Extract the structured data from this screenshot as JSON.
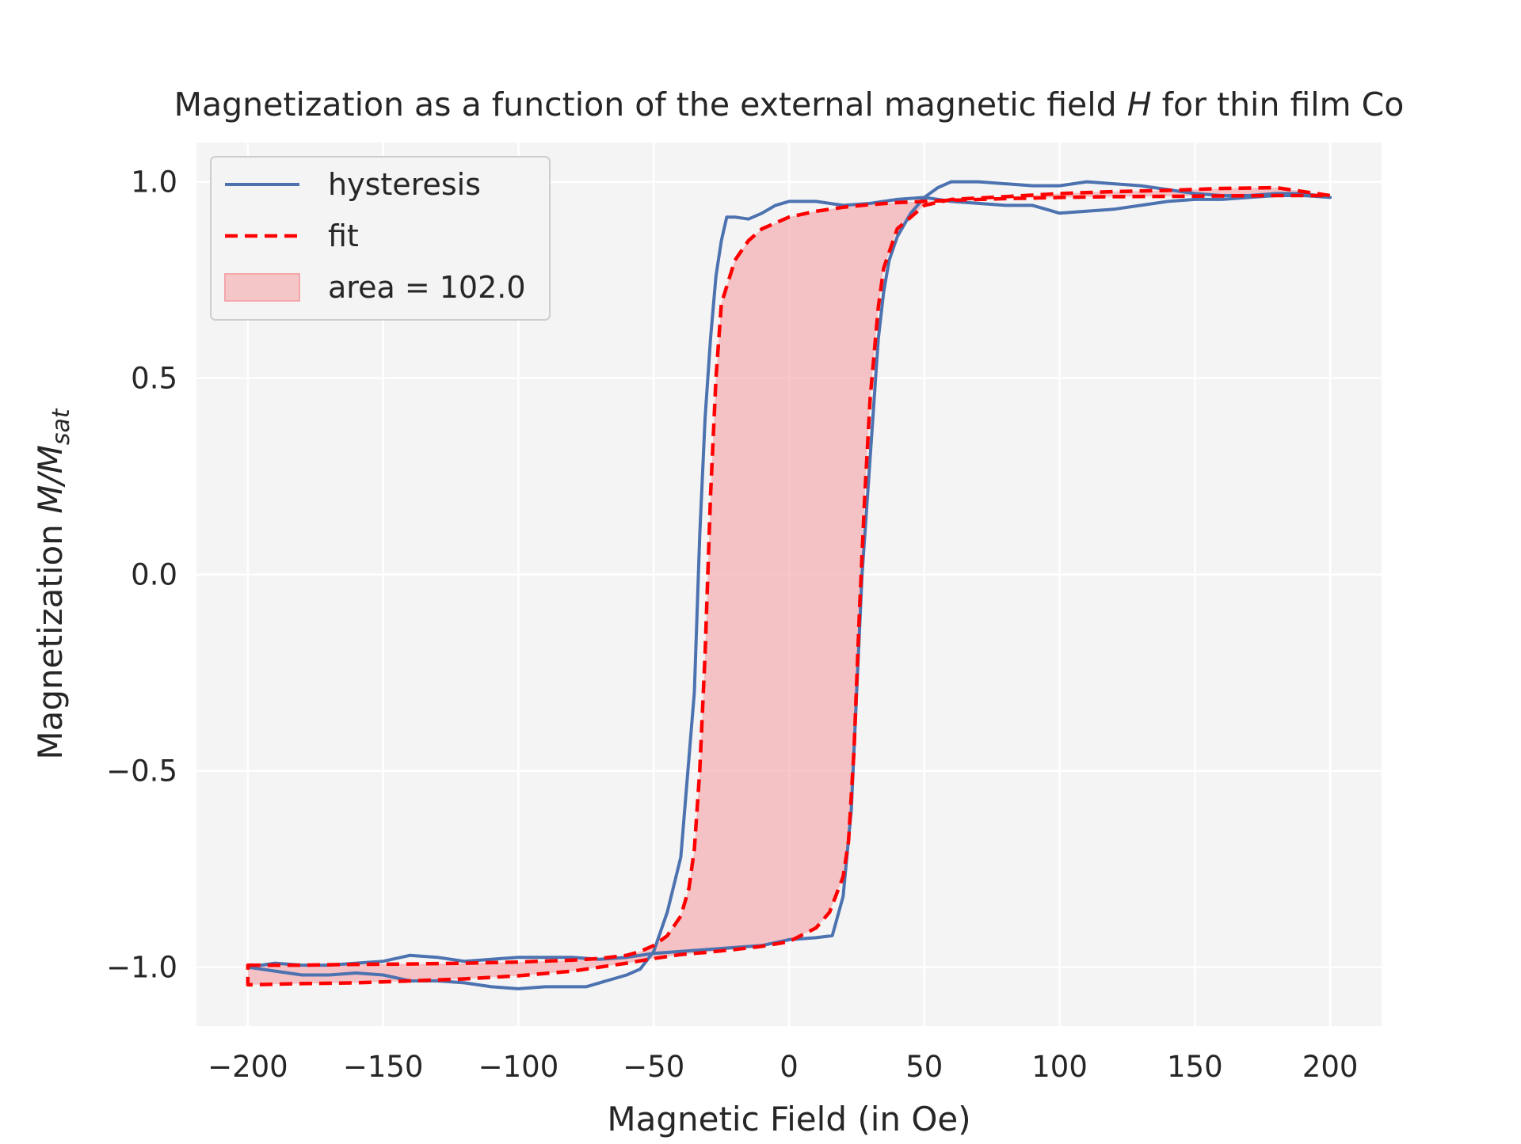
{
  "chart_data": {
    "type": "line",
    "title": {
      "prefix": "Magnetization as a function of the external magnetic field ",
      "symbol": "H",
      "suffix": " for thin film Co"
    },
    "xlabel": "Magnetic Field (in Oe)",
    "ylabel": {
      "prefix": "Magnetization ",
      "math_main": "M/M",
      "math_sub": "sat"
    },
    "xlim": [
      -219,
      219
    ],
    "ylim": [
      -1.15,
      1.1
    ],
    "x_ticks": [
      -200,
      -150,
      -100,
      -50,
      0,
      50,
      100,
      150,
      200
    ],
    "x_tick_labels": [
      "−200",
      "−150",
      "−100",
      "−50",
      "0",
      "50",
      "100",
      "150",
      "200"
    ],
    "y_ticks": [
      -1.0,
      -0.5,
      0.0,
      0.5,
      1.0
    ],
    "y_tick_labels": [
      "−1.0",
      "−0.5",
      "0.0",
      "0.5",
      "1.0"
    ],
    "grid": true,
    "legend_placement": "upper-left",
    "legend": [
      {
        "label": "hysteresis",
        "kind": "line",
        "color": "#4c72b0"
      },
      {
        "label": "fit",
        "kind": "dashed",
        "color": "#ff0000"
      },
      {
        "label": "area = 102.0",
        "kind": "patch",
        "color": "#f4a6aa"
      }
    ],
    "series": [
      {
        "name": "hysteresis",
        "color": "#4c72b0",
        "x": [
          -200,
          -190,
          -180,
          -170,
          -160,
          -150,
          -140,
          -130,
          -120,
          -110,
          -100,
          -90,
          -80,
          -75,
          -70,
          -60,
          -55,
          -50,
          -45,
          -40,
          -35,
          -33,
          -31,
          -29,
          -27,
          -25,
          -23,
          -20,
          -15,
          -10,
          -5,
          0,
          10,
          20,
          30,
          40,
          50,
          55,
          60,
          65,
          70,
          80,
          90,
          100,
          110,
          120,
          130,
          140,
          150,
          160,
          170,
          180,
          190,
          200,
          190,
          180,
          170,
          160,
          150,
          140,
          130,
          120,
          110,
          100,
          95,
          90,
          80,
          70,
          60,
          50,
          45,
          40,
          37,
          35,
          33,
          31,
          29,
          27,
          25,
          23,
          20,
          16,
          10,
          0,
          -10,
          -20,
          -30,
          -40,
          -50,
          -60,
          -70,
          -80,
          -90,
          -100,
          -110,
          -120,
          -130,
          -140,
          -150,
          -160,
          -170,
          -180,
          -190,
          -200
        ],
        "y": [
          -1.0,
          -1.01,
          -1.02,
          -1.02,
          -1.015,
          -1.02,
          -1.035,
          -1.035,
          -1.04,
          -1.05,
          -1.055,
          -1.05,
          -1.05,
          -1.05,
          -1.04,
          -1.02,
          -1.005,
          -0.96,
          -0.86,
          -0.72,
          -0.3,
          0.1,
          0.4,
          0.6,
          0.76,
          0.85,
          0.91,
          0.91,
          0.905,
          0.92,
          0.94,
          0.95,
          0.95,
          0.94,
          0.945,
          0.955,
          0.96,
          0.985,
          1.0,
          1.0,
          1.0,
          0.995,
          0.99,
          0.99,
          1.0,
          0.995,
          0.99,
          0.98,
          0.97,
          0.965,
          0.965,
          0.97,
          0.97,
          0.96,
          0.965,
          0.965,
          0.96,
          0.955,
          0.955,
          0.95,
          0.94,
          0.93,
          0.925,
          0.92,
          0.93,
          0.94,
          0.94,
          0.945,
          0.95,
          0.96,
          0.92,
          0.86,
          0.8,
          0.72,
          0.6,
          0.4,
          0.2,
          0.0,
          -0.3,
          -0.6,
          -0.82,
          -0.92,
          -0.925,
          -0.93,
          -0.945,
          -0.95,
          -0.955,
          -0.96,
          -0.965,
          -0.975,
          -0.98,
          -0.975,
          -0.975,
          -0.975,
          -0.98,
          -0.985,
          -0.975,
          -0.97,
          -0.985,
          -0.99,
          -0.995,
          -0.995,
          -0.99,
          -1.0
        ]
      },
      {
        "name": "fit",
        "color": "#ff0000",
        "x": [
          -200,
          -180,
          -160,
          -140,
          -120,
          -100,
          -80,
          -70,
          -60,
          -55,
          -50,
          -45,
          -40,
          -37,
          -35,
          -33,
          -31,
          -29,
          -27,
          -25,
          -20,
          -15,
          -10,
          0,
          10,
          20,
          30,
          40,
          50,
          60,
          80,
          100,
          120,
          140,
          160,
          180,
          200,
          180,
          160,
          140,
          120,
          100,
          80,
          60,
          50,
          40,
          35,
          33,
          30,
          28,
          26,
          24,
          22,
          20,
          15,
          10,
          0,
          -10,
          -20,
          -30,
          -40,
          -50,
          -60,
          -80,
          -100,
          -120,
          -140,
          -160,
          -180,
          -200
        ],
        "y": [
          -0.995,
          -0.995,
          -0.993,
          -0.992,
          -0.99,
          -0.987,
          -0.982,
          -0.978,
          -0.97,
          -0.96,
          -0.945,
          -0.92,
          -0.87,
          -0.8,
          -0.7,
          -0.5,
          -0.2,
          0.2,
          0.5,
          0.69,
          0.8,
          0.85,
          0.88,
          0.91,
          0.925,
          0.935,
          0.942,
          0.947,
          0.95,
          0.953,
          0.957,
          0.96,
          0.962,
          0.963,
          0.964,
          0.965,
          0.965,
          0.985,
          0.983,
          0.978,
          0.975,
          0.97,
          0.962,
          0.955,
          0.94,
          0.88,
          0.78,
          0.68,
          0.45,
          0.2,
          -0.1,
          -0.45,
          -0.68,
          -0.77,
          -0.86,
          -0.9,
          -0.935,
          -0.947,
          -0.955,
          -0.962,
          -0.968,
          -0.978,
          -0.99,
          -1.01,
          -1.022,
          -1.03,
          -1.035,
          -1.04,
          -1.042,
          -1.045
        ]
      }
    ],
    "filled_area": {
      "label": "area = 102.0",
      "color": "#f4a6aa",
      "between": "fit branches"
    }
  }
}
